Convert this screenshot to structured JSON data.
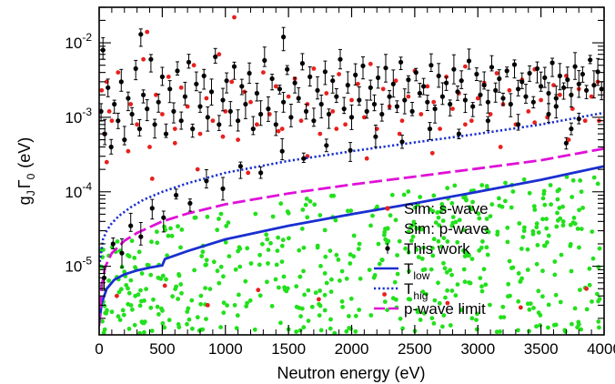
{
  "chart_data": {
    "type": "scatter",
    "xlabel": "Neutron energy (eV)",
    "ylabel": {
      "g": "g",
      "g_sub": "J",
      "gamma": "Γ",
      "gamma_sub": "0",
      "unit": "(eV)"
    },
    "xlim": [
      0,
      4000
    ],
    "ylim": [
      1.2e-06,
      0.03
    ],
    "y_scale": "log",
    "x_ticks": [
      0,
      500,
      1000,
      1500,
      2000,
      2500,
      3000,
      3500,
      4000
    ],
    "x_tick_labels": [
      "0",
      "500",
      "1000",
      "1500",
      "2000",
      "2500",
      "3000",
      "3500",
      "4000"
    ],
    "y_ticks": [
      1e-05,
      0.0001,
      0.001,
      0.01
    ],
    "y_tick_labels": [
      {
        "base": "10",
        "exp": "-5"
      },
      {
        "base": "10",
        "exp": "-4"
      },
      {
        "base": "10",
        "exp": "-3"
      },
      {
        "base": "10",
        "exp": "-2"
      }
    ],
    "grid": false,
    "legend_position": "bottom-right",
    "legend": [
      {
        "label": "Sim: s-wave",
        "marker": "dot",
        "color": "#e8201e"
      },
      {
        "label": "Sim: p-wave",
        "marker": "dot",
        "color": "#22e01c"
      },
      {
        "label": "This work",
        "marker": "dot-errorbar",
        "color": "#000000"
      },
      {
        "label": "T",
        "sub": "low",
        "marker": "solid-line",
        "color": "#1a2fd0"
      },
      {
        "label": "T",
        "sub": "hig",
        "marker": "dotted-line",
        "color": "#1a2fd0"
      },
      {
        "label": "p-wave limit",
        "marker": "dashed-line",
        "color": "#e010d8"
      }
    ],
    "series": [
      {
        "name": "Sim: s-wave",
        "kind": "points",
        "color": "#e8201e",
        "x": [
          20,
          40,
          60,
          80,
          100,
          150,
          200,
          250,
          300,
          350,
          400,
          450,
          500,
          550,
          600,
          650,
          700,
          750,
          800,
          850,
          900,
          950,
          1000,
          1050,
          1100,
          1150,
          1200,
          1250,
          1300,
          1350,
          1400,
          1450,
          1500,
          1550,
          1600,
          1650,
          1700,
          1750,
          1800,
          1850,
          1900,
          1950,
          2000,
          2050,
          2100,
          2150,
          2200,
          2250,
          2300,
          2350,
          2400,
          2450,
          2500,
          2550,
          2600,
          2650,
          2700,
          2750,
          2800,
          2850,
          2900,
          2950,
          3000,
          3050,
          3100,
          3150,
          3200,
          3250,
          3300,
          3350,
          3400,
          3450,
          3500,
          3550,
          3600,
          3650,
          3700,
          3750,
          3800,
          3850,
          3900,
          3950,
          60,
          230,
          420,
          600,
          780,
          980,
          1180,
          1420,
          1650,
          1880,
          2120,
          2380,
          2640,
          2900,
          3180,
          3450,
          3720,
          3960,
          1070,
          380,
          140,
          520,
          860,
          1260,
          1740,
          2260,
          2760,
          3340,
          3860
        ],
        "y": [
          0.0023,
          0.0006,
          0.003,
          0.0012,
          0.0009,
          0.004,
          0.0005,
          0.0015,
          0.0008,
          0.006,
          0.0004,
          0.002,
          0.0011,
          0.0035,
          0.0007,
          0.0025,
          0.0014,
          0.005,
          0.0006,
          0.0018,
          0.0009,
          0.007,
          0.0012,
          0.003,
          0.0005,
          0.0022,
          0.0016,
          0.0008,
          0.004,
          0.0011,
          0.0026,
          0.0007,
          0.0019,
          0.0033,
          0.0009,
          0.0015,
          0.0045,
          0.0006,
          0.0021,
          0.0012,
          0.0038,
          0.0008,
          0.0017,
          0.0028,
          0.001,
          0.0052,
          0.0007,
          0.0024,
          0.0014,
          0.0031,
          0.0009,
          0.0019,
          0.0042,
          0.0011,
          0.0026,
          0.0016,
          0.0007,
          0.0035,
          0.0013,
          0.0021,
          0.0048,
          0.0009,
          0.0018,
          0.0029,
          0.0011,
          0.0039,
          0.0015,
          0.0023,
          0.0008,
          0.0032,
          0.0012,
          0.0044,
          0.0017,
          0.001,
          0.0027,
          0.002,
          0.0036,
          0.0013,
          0.0024,
          0.0009,
          0.0019,
          0.003,
          0.00025,
          0.00035,
          0.00015,
          0.00045,
          0.0002,
          0.00055,
          0.00018,
          0.00065,
          0.0003,
          0.0007,
          0.00028,
          0.0006,
          0.00033,
          0.0008,
          0.0004,
          0.00085,
          0.0005,
          0.0009,
          0.022,
          0.014,
          4e-06,
          5.5e-06,
          3e-06,
          4.8e-06,
          3.6e-06,
          4.2e-06,
          3.2e-06,
          2.8e-06,
          5e-06
        ]
      },
      {
        "name": "Sim: p-wave",
        "kind": "points",
        "color": "#22e01c",
        "generated_count": 560,
        "x_range": [
          20,
          3980
        ]
      },
      {
        "name": "This work",
        "kind": "points-errorbars",
        "color": "#000000",
        "x": [
          15,
          30,
          45,
          70,
          95,
          120,
          150,
          175,
          200,
          230,
          260,
          290,
          320,
          350,
          380,
          410,
          440,
          470,
          500,
          530,
          560,
          590,
          620,
          650,
          680,
          710,
          740,
          770,
          800,
          830,
          860,
          890,
          920,
          950,
          980,
          1010,
          1040,
          1070,
          1100,
          1130,
          1160,
          1190,
          1220,
          1250,
          1280,
          1310,
          1340,
          1370,
          1400,
          1430,
          1460,
          1490,
          1520,
          1550,
          1580,
          1610,
          1640,
          1670,
          1700,
          1730,
          1760,
          1790,
          1820,
          1850,
          1880,
          1910,
          1940,
          1970,
          2000,
          2030,
          2060,
          2090,
          2120,
          2150,
          2180,
          2210,
          2240,
          2270,
          2300,
          2330,
          2360,
          2390,
          2420,
          2450,
          2480,
          2510,
          2540,
          2570,
          2600,
          2630,
          2660,
          2690,
          2720,
          2750,
          2780,
          2810,
          2840,
          2870,
          2900,
          2930,
          2960,
          2990,
          3020,
          3050,
          3080,
          3110,
          3140,
          3170,
          3200,
          3230,
          3260,
          3290,
          3320,
          3350,
          3380,
          3410,
          3440,
          3470,
          3500,
          3530,
          3560,
          3590,
          3620,
          3650,
          3680,
          3710,
          3740,
          3770,
          3800,
          3830,
          3860,
          3890,
          3920,
          3950,
          3980,
          40,
          110,
          180,
          250,
          330,
          420,
          510,
          610,
          720,
          850,
          980,
          1120,
          1280,
          1450,
          1620,
          1800,
          1990,
          2190,
          2400,
          2620,
          2850,
          3080,
          3320,
          3560,
          3800,
          330,
          1460,
          3620,
          3700,
          3740
        ],
        "y": [
          0.0012,
          0.008,
          0.0006,
          0.0025,
          0.0004,
          0.0015,
          0.0009,
          0.003,
          0.0005,
          0.0018,
          0.0011,
          0.0045,
          0.0007,
          0.002,
          0.0013,
          0.006,
          0.0008,
          0.0016,
          0.0035,
          0.0006,
          0.0024,
          0.0012,
          0.0042,
          0.0009,
          0.0019,
          0.0055,
          0.0007,
          0.0028,
          0.0014,
          0.0036,
          0.001,
          0.0022,
          0.0065,
          0.0008,
          0.0017,
          0.0031,
          0.0012,
          0.0048,
          0.0009,
          0.0026,
          0.0015,
          0.0039,
          0.0007,
          0.0021,
          0.0011,
          0.0058,
          0.0013,
          0.0033,
          0.0008,
          0.0024,
          0.0016,
          0.0044,
          0.001,
          0.0029,
          0.0018,
          0.0053,
          0.0012,
          0.0035,
          0.0009,
          0.0023,
          0.0015,
          0.0041,
          0.0011,
          0.0031,
          0.0019,
          0.006,
          0.0013,
          0.0027,
          0.001,
          0.0037,
          0.0017,
          0.0049,
          0.0012,
          0.0025,
          0.0015,
          0.0034,
          0.0011,
          0.0046,
          0.0019,
          0.0028,
          0.0014,
          0.0055,
          0.0017,
          0.0032,
          0.0012,
          0.004,
          0.0021,
          0.0026,
          0.0016,
          0.005,
          0.0013,
          0.0036,
          0.0019,
          0.0029,
          0.0015,
          0.0044,
          0.0022,
          0.0031,
          0.0017,
          0.0057,
          0.0014,
          0.0038,
          0.002,
          0.0027,
          0.0016,
          0.0047,
          0.0023,
          0.0033,
          0.0018,
          0.0042,
          0.0015,
          0.0051,
          0.0024,
          0.003,
          0.0019,
          0.0039,
          0.0016,
          0.0045,
          0.0026,
          0.0034,
          0.0021,
          0.0054,
          0.0018,
          0.0036,
          0.0025,
          0.0032,
          0.002,
          0.0048,
          0.0028,
          0.0038,
          0.0023,
          0.0059,
          0.0027,
          0.0041,
          0.0024,
          7e-06,
          2e-05,
          1.5e-05,
          3.5e-05,
          2.5e-05,
          6e-05,
          4.5e-05,
          9e-05,
          7e-05,
          0.00014,
          0.00011,
          0.00022,
          0.00018,
          0.00035,
          0.00028,
          0.00042,
          0.00036,
          0.00055,
          0.00047,
          0.0007,
          0.0006,
          0.0009,
          0.0008,
          0.0011,
          0.00095,
          0.013,
          0.012,
          0.0014,
          0.00045,
          0.0007
        ]
      },
      {
        "name": "T_low",
        "kind": "line",
        "style": "solid",
        "color": "#1a2fd0",
        "x": [
          0,
          20,
          60,
          120,
          200,
          300,
          400,
          500,
          520,
          700,
          1000,
          1500,
          2000,
          2500,
          3000,
          3500,
          4000
        ],
        "y": [
          1.7e-06,
          3.2e-06,
          5e-06,
          6.6e-06,
          7.8e-06,
          8.8e-06,
          9.6e-06,
          1.03e-05,
          1.25e-05,
          1.6e-05,
          2.3e-05,
          3.5e-05,
          5e-05,
          7e-05,
          0.0001,
          0.000145,
          0.00022
        ]
      },
      {
        "name": "T_hig",
        "kind": "line",
        "style": "dotted",
        "color": "#1a2fd0",
        "x": [
          0,
          10,
          30,
          60,
          100,
          160,
          250,
          350,
          500,
          700,
          1000,
          1500,
          2000,
          2500,
          3000,
          3500,
          4000
        ],
        "y": [
          1e-05,
          1.3e-05,
          2.3e-05,
          3e-05,
          3.8e-05,
          4.8e-05,
          6.2e-05,
          7.8e-05,
          0.0001,
          0.00013,
          0.00018,
          0.00026,
          0.00035,
          0.00046,
          0.0006,
          0.0008,
          0.00115
        ]
      },
      {
        "name": "p-wave limit",
        "kind": "line",
        "style": "dashed",
        "color": "#e010d8",
        "x": [
          0,
          20,
          50,
          100,
          200,
          300,
          500,
          700,
          1000,
          1500,
          2000,
          2500,
          3000,
          3500,
          4000
        ],
        "y": [
          1.6e-06,
          5.5e-06,
          1e-05,
          1.5e-05,
          2.2e-05,
          2.8e-05,
          4e-05,
          5.1e-05,
          6.8e-05,
          9.5e-05,
          0.000125,
          0.00016,
          0.000205,
          0.000265,
          0.00038
        ]
      }
    ]
  }
}
